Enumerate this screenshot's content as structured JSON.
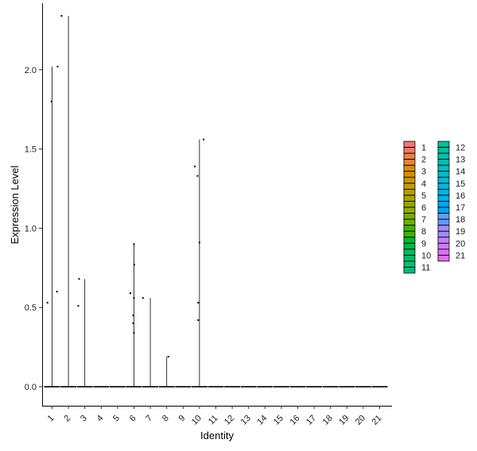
{
  "chart_data": {
    "type": "violin",
    "xlabel": "Identity",
    "ylabel": "Expression Level",
    "ylim": [
      -0.12,
      2.42
    ],
    "yticks": [
      "0.0",
      "0.5",
      "1.0",
      "1.5",
      "2.0"
    ],
    "categories": [
      "1",
      "2",
      "3",
      "4",
      "5",
      "6",
      "7",
      "8",
      "9",
      "10",
      "11",
      "12",
      "13",
      "14",
      "15",
      "16",
      "17",
      "18",
      "19",
      "20",
      "21"
    ],
    "colors": [
      "#F8766D",
      "#EC8239",
      "#DB8E00",
      "#C79800",
      "#AFA100",
      "#93AA00",
      "#6FB000",
      "#3EB500",
      "#00BA38",
      "#00BD5F",
      "#00BF7D",
      "#00C098",
      "#00C0B1",
      "#00BDC7",
      "#00B8DB",
      "#00B0EC",
      "#00A6FA",
      "#619CFF",
      "#9F8CFF",
      "#C77CFF",
      "#E76BF3"
    ],
    "violin_max": [
      2.02,
      2.34,
      0.68,
      0,
      0,
      0.9,
      0.56,
      0.19,
      0,
      1.56,
      0,
      0,
      0,
      0,
      0,
      0,
      0,
      0,
      0,
      0,
      0
    ],
    "points": [
      {
        "group": 1,
        "dx": -0.28,
        "y": 0.53
      },
      {
        "group": 1,
        "dx": -0.04,
        "y": 1.8
      },
      {
        "group": 1,
        "dx": 0.3,
        "y": 0.6
      },
      {
        "group": 1,
        "dx": 0.34,
        "y": 2.02
      },
      {
        "group": 2,
        "dx": -0.42,
        "y": 2.34
      },
      {
        "group": 3,
        "dx": -0.35,
        "y": 0.68
      },
      {
        "group": 3,
        "dx": -0.4,
        "y": 0.51
      },
      {
        "group": 6,
        "dx": -0.22,
        "y": 0.59
      },
      {
        "group": 6,
        "dx": 0.0,
        "y": 0.9
      },
      {
        "group": 6,
        "dx": 0.02,
        "y": 0.77
      },
      {
        "group": 6,
        "dx": 0.0,
        "y": 0.56
      },
      {
        "group": 6,
        "dx": -0.05,
        "y": 0.45
      },
      {
        "group": 6,
        "dx": -0.05,
        "y": 0.4
      },
      {
        "group": 6,
        "dx": 0.0,
        "y": 0.34
      },
      {
        "group": 6,
        "dx": 0.55,
        "y": 0.56
      },
      {
        "group": 8,
        "dx": 0.1,
        "y": 0.19
      },
      {
        "group": 10,
        "dx": -0.28,
        "y": 1.39
      },
      {
        "group": 10,
        "dx": -0.12,
        "y": 1.33
      },
      {
        "group": 10,
        "dx": 0.25,
        "y": 1.56
      },
      {
        "group": 10,
        "dx": 0.0,
        "y": 0.91
      },
      {
        "group": 10,
        "dx": -0.08,
        "y": 0.53
      },
      {
        "group": 10,
        "dx": -0.08,
        "y": 0.42
      }
    ],
    "legend": {
      "position": "right",
      "columns": [
        [
          "1",
          "2",
          "3",
          "4",
          "5",
          "6",
          "7",
          "8",
          "9",
          "10",
          "11"
        ],
        [
          "12",
          "13",
          "14",
          "15",
          "16",
          "17",
          "18",
          "19",
          "20",
          "21"
        ]
      ]
    }
  }
}
